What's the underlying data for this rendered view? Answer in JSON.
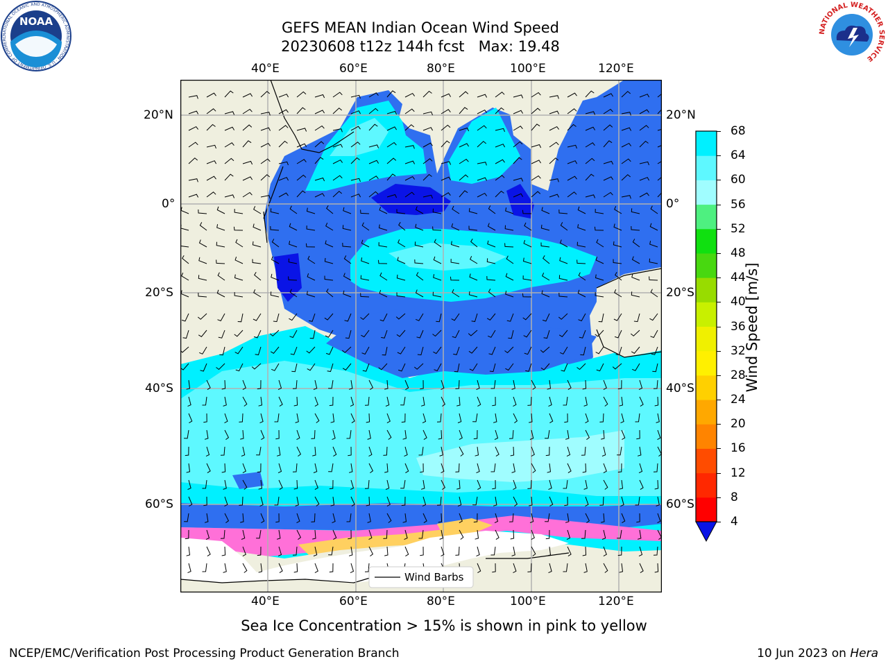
{
  "header": {
    "title_line1": "GEFS MEAN Indian Ocean Wind Speed",
    "title_line2": "20230608 t12z 144h fcst   Max: 19.48"
  },
  "logos": {
    "noaa": {
      "text": "NOAA",
      "ring_text": "NATIONAL OCEANIC AND ATMOSPHERIC ADMINISTRATION · U.S. DEPARTMENT OF COMMERCE"
    },
    "nws": {
      "ring_text": "NATIONAL WEATHER SERVICE"
    }
  },
  "map": {
    "lon_ticks": [
      "40°E",
      "60°E",
      "80°E",
      "100°E",
      "120°E"
    ],
    "lat_ticks": [
      "20°N",
      "0°",
      "20°S",
      "40°S",
      "60°S"
    ],
    "legend_label": "Wind Barbs",
    "colors": {
      "land": "#efefdf",
      "ice_shelf": "#ffffff",
      "speed_4_8": "#2f6ff0",
      "speed_calm": "#0a14e6",
      "speed_8_12": "#00f0ff",
      "speed_12_16": "#5ef8ff",
      "speed_16_20": "#a0fdff",
      "grid": "#b0b0b0",
      "sea_ice_pink": "#ff70d8",
      "sea_ice_yellow": "#ffd060"
    }
  },
  "colorbar": {
    "label": "Wind Speed [m/s]",
    "ticks": [
      "68",
      "64",
      "60",
      "56",
      "52",
      "48",
      "44",
      "40",
      "36",
      "32",
      "28",
      "24",
      "20",
      "16",
      "12",
      "8",
      "4"
    ],
    "bands": [
      "#0a14e6",
      "#2f6ff0",
      "#00f0ff",
      "#5ef8ff",
      "#a0fdff",
      "#4ef080",
      "#10e010",
      "#48d810",
      "#98dc00",
      "#c8f000",
      "#f0f000",
      "#fff000",
      "#ffd000",
      "#ffa800",
      "#ff8400",
      "#ff4c00",
      "#ff2800",
      "#ff0000"
    ]
  },
  "note": "Sea Ice Concentration > 15% is shown in pink to yellow",
  "footer": {
    "left": "NCEP/EMC/Verification Post Processing Product Generation Branch",
    "right_prefix": "10 Jun 2023 on ",
    "right_machine": "Hera"
  }
}
